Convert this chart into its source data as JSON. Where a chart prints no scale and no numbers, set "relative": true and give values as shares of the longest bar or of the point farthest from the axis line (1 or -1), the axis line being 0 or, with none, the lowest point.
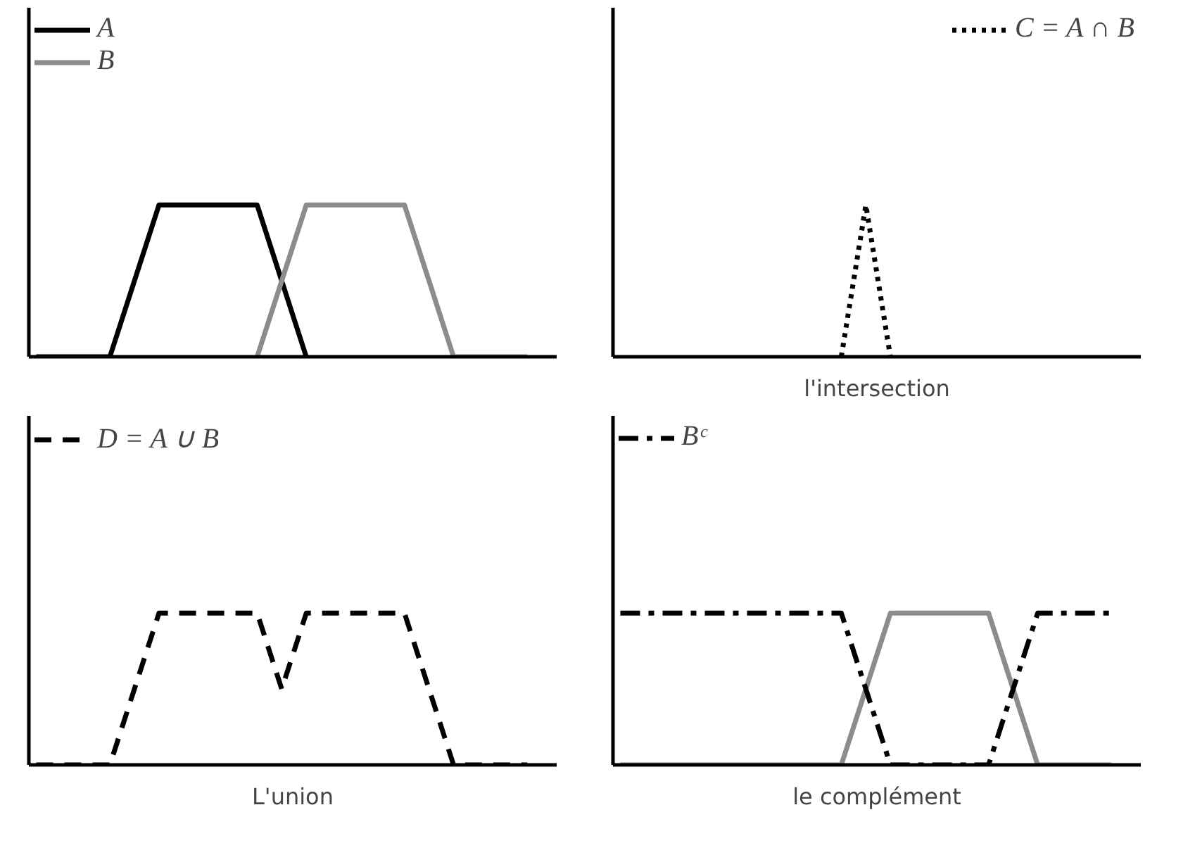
{
  "chart_data": [
    {
      "type": "line",
      "relative": true,
      "tick_labels": false,
      "grid": false,
      "legend": "top left",
      "categories": [
        null,
        null,
        null,
        null,
        null,
        null,
        null,
        null,
        null,
        null,
        null,
        null,
        null,
        null,
        null,
        null,
        null,
        null,
        null,
        null,
        null
      ],
      "series": [
        {
          "name": "A",
          "color": "#000000",
          "line_style": "solid",
          "values": [
            0,
            0,
            0,
            0,
            0.5,
            1,
            1,
            1,
            1,
            1,
            0.5,
            0,
            null,
            null,
            null,
            null,
            null,
            null,
            null,
            null,
            null
          ]
        },
        {
          "name": "B",
          "color": "#8c8c8c",
          "line_style": "solid",
          "values": [
            null,
            null,
            null,
            null,
            null,
            null,
            null,
            null,
            null,
            0,
            0.5,
            1,
            1,
            1,
            1,
            1,
            0.5,
            0,
            0,
            0,
            0
          ]
        }
      ]
    },
    {
      "type": "line",
      "relative": true,
      "tick_labels": false,
      "grid": false,
      "legend": "top right",
      "xlabel": "l'intersection",
      "categories": [
        null,
        null,
        null,
        null,
        null,
        null,
        null,
        null,
        null,
        null,
        null,
        null,
        null,
        null,
        null,
        null,
        null,
        null,
        null,
        null,
        null
      ],
      "series": [
        {
          "name": "C = A ∩ B",
          "color": "#000000",
          "line_style": "dotted",
          "values": [
            null,
            null,
            null,
            null,
            null,
            null,
            null,
            null,
            null,
            0,
            1,
            0,
            null,
            null,
            null,
            null,
            null,
            null,
            null,
            null,
            null
          ]
        }
      ]
    },
    {
      "type": "line",
      "relative": true,
      "tick_labels": false,
      "grid": false,
      "legend": "top left",
      "xlabel": "L'union",
      "categories": [
        null,
        null,
        null,
        null,
        null,
        null,
        null,
        null,
        null,
        null,
        null,
        null,
        null,
        null,
        null,
        null,
        null,
        null,
        null,
        null,
        null
      ],
      "series": [
        {
          "name": "D = A ∪ B",
          "color": "#000000",
          "line_style": "dashed",
          "values": [
            0,
            0,
            0,
            0,
            0.5,
            1,
            1,
            1,
            1,
            1,
            0.5,
            1,
            1,
            1,
            1,
            1,
            0.5,
            0,
            0,
            0,
            0
          ]
        }
      ]
    },
    {
      "type": "line",
      "relative": true,
      "tick_labels": false,
      "grid": false,
      "legend": "top left",
      "xlabel": "le complément",
      "categories": [
        null,
        null,
        null,
        null,
        null,
        null,
        null,
        null,
        null,
        null,
        null,
        null,
        null,
        null,
        null,
        null,
        null,
        null,
        null,
        null,
        null
      ],
      "series": [
        {
          "color": "#8c8c8c",
          "line_style": "solid",
          "values": [
            0,
            0,
            0,
            0,
            0,
            0,
            0,
            0,
            0,
            0,
            0.5,
            1,
            1,
            1,
            1,
            1,
            0.5,
            0,
            0,
            0,
            0
          ]
        },
        {
          "name": "Bᶜ",
          "color": "#000000",
          "line_style": "dashdot",
          "values": [
            1,
            1,
            1,
            1,
            1,
            1,
            1,
            1,
            1,
            1,
            0.5,
            0,
            0,
            0,
            0,
            0,
            0.5,
            1,
            1,
            1,
            1
          ]
        }
      ]
    }
  ]
}
